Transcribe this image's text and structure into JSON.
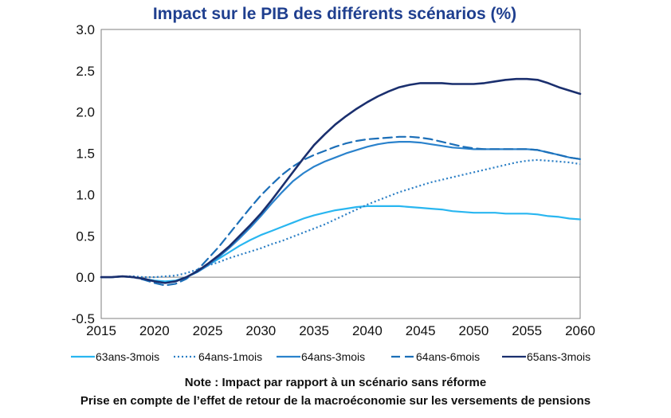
{
  "chart_data": {
    "type": "line",
    "title": "Impact sur le PIB des différents scénarios (%)",
    "title_color": "#1f3f8f",
    "xlim": [
      2015,
      2060
    ],
    "ylim": [
      -0.5,
      3.0
    ],
    "x_ticks": [
      2015,
      2020,
      2025,
      2030,
      2035,
      2040,
      2045,
      2050,
      2055,
      2060
    ],
    "y_ticks": [
      -0.5,
      0.0,
      0.5,
      1.0,
      1.5,
      2.0,
      2.5,
      3.0
    ],
    "y_tick_labels": [
      "-0.5",
      "0.0",
      "0.5",
      "1.0",
      "1.5",
      "2.0",
      "2.5",
      "3.0"
    ],
    "x_tick_labels": [
      "2015",
      "2020",
      "2025",
      "2030",
      "2035",
      "2040",
      "2045",
      "2050",
      "2055",
      "2060"
    ],
    "grid": false,
    "legend_position": "bottom",
    "x": [
      2015,
      2016,
      2017,
      2018,
      2019,
      2020,
      2021,
      2022,
      2023,
      2024,
      2025,
      2026,
      2027,
      2028,
      2029,
      2030,
      2031,
      2032,
      2033,
      2034,
      2035,
      2036,
      2037,
      2038,
      2039,
      2040,
      2041,
      2042,
      2043,
      2044,
      2045,
      2046,
      2047,
      2048,
      2049,
      2050,
      2051,
      2052,
      2053,
      2054,
      2055,
      2056,
      2057,
      2058,
      2059,
      2060
    ],
    "series": [
      {
        "name": "63ans-3mois",
        "color": "#29b6f0",
        "dash": "solid",
        "values": [
          0.0,
          0.0,
          0.01,
          0.0,
          -0.02,
          -0.04,
          -0.05,
          -0.04,
          0.0,
          0.06,
          0.14,
          0.22,
          0.3,
          0.38,
          0.45,
          0.51,
          0.56,
          0.61,
          0.66,
          0.71,
          0.75,
          0.78,
          0.81,
          0.83,
          0.85,
          0.86,
          0.86,
          0.86,
          0.86,
          0.85,
          0.84,
          0.83,
          0.82,
          0.8,
          0.79,
          0.78,
          0.78,
          0.78,
          0.77,
          0.77,
          0.77,
          0.76,
          0.74,
          0.73,
          0.71,
          0.7
        ]
      },
      {
        "name": "64ans-1mois",
        "color": "#2a7ec5",
        "dash": "dotted",
        "values": [
          0.0,
          0.0,
          0.01,
          0.01,
          0.0,
          0.0,
          0.01,
          0.02,
          0.05,
          0.09,
          0.14,
          0.18,
          0.23,
          0.27,
          0.31,
          0.35,
          0.4,
          0.44,
          0.49,
          0.54,
          0.59,
          0.64,
          0.7,
          0.76,
          0.82,
          0.88,
          0.93,
          0.98,
          1.03,
          1.07,
          1.11,
          1.15,
          1.18,
          1.21,
          1.24,
          1.27,
          1.3,
          1.33,
          1.36,
          1.39,
          1.41,
          1.42,
          1.41,
          1.4,
          1.39,
          1.37
        ]
      },
      {
        "name": "64ans-3mois",
        "color": "#2a82cc",
        "dash": "solid",
        "values": [
          0.0,
          0.0,
          0.01,
          0.0,
          -0.02,
          -0.05,
          -0.07,
          -0.05,
          0.0,
          0.06,
          0.14,
          0.24,
          0.35,
          0.47,
          0.6,
          0.74,
          0.89,
          1.03,
          1.16,
          1.26,
          1.34,
          1.4,
          1.45,
          1.5,
          1.54,
          1.58,
          1.61,
          1.63,
          1.64,
          1.64,
          1.63,
          1.61,
          1.59,
          1.57,
          1.56,
          1.55,
          1.55,
          1.55,
          1.55,
          1.55,
          1.55,
          1.54,
          1.51,
          1.48,
          1.45,
          1.43
        ]
      },
      {
        "name": "64ans-6mois",
        "color": "#1c6fb8",
        "dash": "dashed",
        "values": [
          0.0,
          0.0,
          0.01,
          0.0,
          -0.03,
          -0.07,
          -0.1,
          -0.08,
          -0.02,
          0.08,
          0.22,
          0.36,
          0.52,
          0.68,
          0.84,
          0.99,
          1.12,
          1.24,
          1.34,
          1.42,
          1.48,
          1.53,
          1.58,
          1.62,
          1.65,
          1.67,
          1.68,
          1.69,
          1.7,
          1.7,
          1.69,
          1.67,
          1.64,
          1.61,
          1.58,
          1.56,
          1.55,
          1.55,
          1.55,
          1.55,
          1.55,
          1.54,
          1.51,
          1.48,
          1.45,
          1.43
        ]
      },
      {
        "name": "65ans-3mois",
        "color": "#1a2f6e",
        "dash": "solid",
        "values": [
          0.0,
          0.0,
          0.01,
          0.0,
          -0.02,
          -0.05,
          -0.07,
          -0.05,
          0.0,
          0.07,
          0.16,
          0.26,
          0.37,
          0.5,
          0.63,
          0.77,
          0.93,
          1.1,
          1.27,
          1.44,
          1.6,
          1.73,
          1.85,
          1.95,
          2.04,
          2.12,
          2.19,
          2.25,
          2.3,
          2.33,
          2.35,
          2.35,
          2.35,
          2.34,
          2.34,
          2.34,
          2.35,
          2.37,
          2.39,
          2.4,
          2.4,
          2.39,
          2.35,
          2.3,
          2.26,
          2.22
        ]
      }
    ]
  },
  "notes": {
    "line1": "Note : Impact par rapport à un scénario sans réforme",
    "line2": "Prise en compte de l’effet de retour de la macroéconomie sur les versements de pensions"
  }
}
